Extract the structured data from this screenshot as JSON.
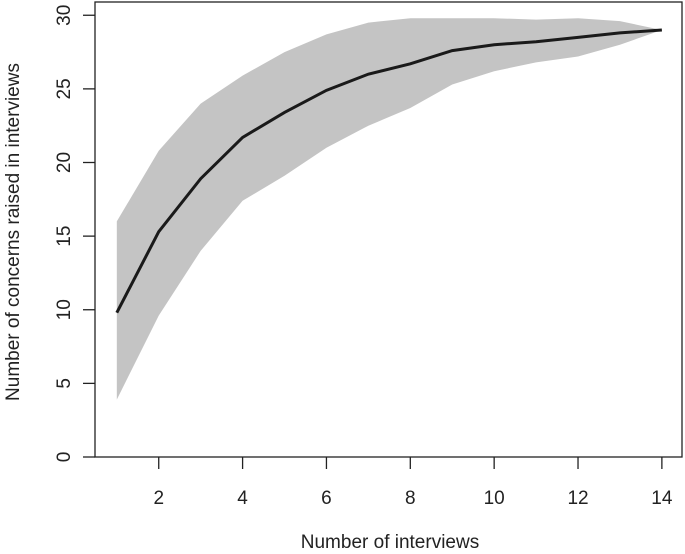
{
  "chart_data": {
    "type": "line",
    "x_label": "Number of interviews",
    "y_label": "Number of concerns raised in interviews",
    "x": [
      1,
      2,
      3,
      4,
      5,
      6,
      7,
      8,
      9,
      10,
      11,
      12,
      13,
      14
    ],
    "values": [
      9.8,
      15.3,
      18.9,
      21.7,
      23.4,
      24.9,
      26.0,
      26.7,
      27.6,
      28.0,
      28.2,
      28.5,
      28.8,
      29.0
    ],
    "upper": [
      16.0,
      20.8,
      24.0,
      25.9,
      27.5,
      28.7,
      29.5,
      29.8,
      29.8,
      29.8,
      29.7,
      29.8,
      29.6,
      29.0
    ],
    "lower": [
      3.9,
      9.6,
      14.0,
      17.4,
      19.1,
      21.0,
      22.5,
      23.7,
      25.3,
      26.2,
      26.8,
      27.2,
      28.0,
      29.0
    ],
    "color": "#1a1a1a",
    "band_color": "#c4c4c4",
    "xlim": [
      0.48,
      14.48
    ],
    "xticks": [
      2,
      4,
      6,
      8,
      10,
      12,
      14
    ],
    "ylim": [
      0,
      30.9
    ],
    "yticks": [
      0,
      5,
      10,
      15,
      20,
      25,
      30
    ]
  }
}
